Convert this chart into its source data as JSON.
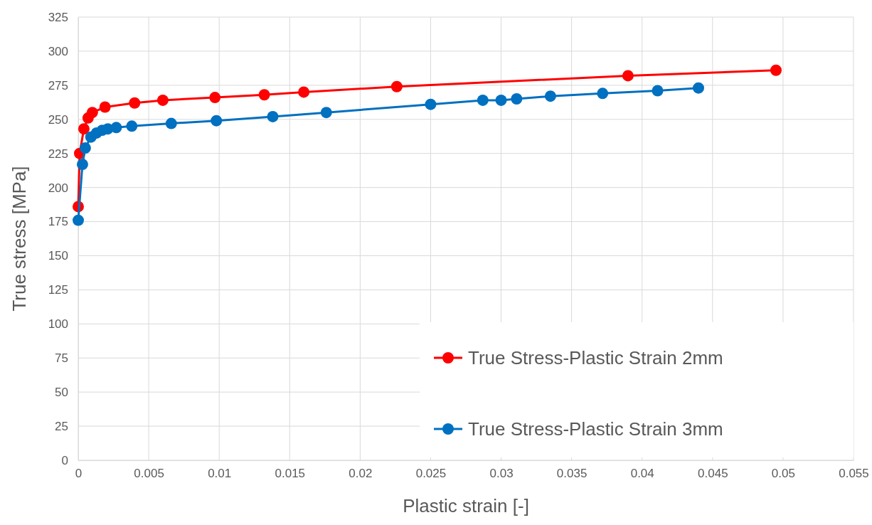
{
  "chart_data": {
    "type": "line",
    "xlabel": "Plastic strain [-]",
    "ylabel": "True stress [MPa]",
    "xlim": [
      0,
      0.055
    ],
    "xticks": [
      0,
      0.005,
      0.01,
      0.015,
      0.02,
      0.025,
      0.03,
      0.035,
      0.04,
      0.045,
      0.05,
      0.055
    ],
    "ylim": [
      0,
      325
    ],
    "yticks": [
      0,
      25,
      50,
      75,
      100,
      125,
      150,
      175,
      200,
      225,
      250,
      275,
      300,
      325
    ],
    "grid": true,
    "legend": "bottom right",
    "marker": "circle",
    "line_style": "solid",
    "series": [
      {
        "name": "True Stress-Plastic Strain 2mm",
        "color": "#ff0000",
        "x": [
          0,
          0.0001,
          0.0004,
          0.0007,
          0.001,
          0.0019,
          0.004,
          0.006,
          0.0097,
          0.0132,
          0.016,
          0.0226,
          0.039,
          0.0495
        ],
        "values": [
          186,
          225,
          243,
          251,
          255,
          259,
          262,
          264,
          266,
          268,
          270,
          274,
          282,
          286
        ]
      },
      {
        "name": "True Stress-Plastic Strain 3mm",
        "color": "#0070c0",
        "x": [
          0,
          0.0003,
          0.0005,
          0.0009,
          0.0013,
          0.0017,
          0.0021,
          0.0027,
          0.0038,
          0.0066,
          0.0098,
          0.0138,
          0.0176,
          0.025,
          0.0287,
          0.03,
          0.0311,
          0.0335,
          0.0372,
          0.0411,
          0.044
        ],
        "values": [
          176,
          217,
          229,
          237,
          240,
          242,
          243,
          244,
          245,
          247,
          249,
          252,
          255,
          261,
          264,
          264,
          265,
          267,
          269,
          271,
          273
        ]
      }
    ]
  }
}
